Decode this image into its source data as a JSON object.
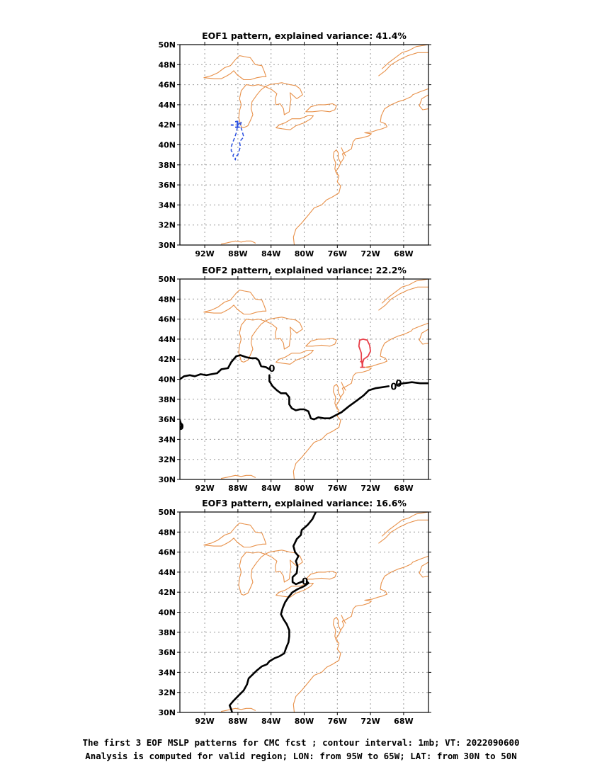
{
  "map": {
    "lon_range": [
      -95,
      -65
    ],
    "lat_range": [
      30,
      50
    ],
    "lon_ticks": [
      -92,
      -88,
      -84,
      -80,
      -76,
      -72,
      -68
    ],
    "lat_ticks": [
      30,
      32,
      34,
      36,
      38,
      40,
      42,
      44,
      46,
      48,
      50
    ],
    "lon_tick_labels": [
      "92W",
      "88W",
      "84W",
      "80W",
      "76W",
      "72W",
      "68W"
    ],
    "lat_tick_labels": [
      "30N",
      "32N",
      "34N",
      "36N",
      "38N",
      "40N",
      "42N",
      "44N",
      "46N",
      "48N",
      "50N"
    ],
    "colors": {
      "coastline": "#e8914a",
      "grid": "#9a9a9a",
      "zero_contour": "#000000",
      "negative_contour": "#2a4fe0",
      "positive_contour": "#e8404a"
    },
    "contour_interval": "1mb"
  },
  "panels": [
    {
      "title": "EOF1 pattern, explained variance: 41.4%",
      "contours": [
        {
          "kind": "negative",
          "label": "-1",
          "label_pos": [
            -88.3,
            42.05
          ],
          "points": [
            [
              -87.6,
              42.3
            ],
            [
              -87.7,
              41.9
            ],
            [
              -87.5,
              41.4
            ],
            [
              -87.3,
              40.8
            ],
            [
              -87.8,
              40.3
            ],
            [
              -87.7,
              39.8
            ],
            [
              -87.9,
              39.3
            ],
            [
              -88.0,
              39.0
            ],
            [
              -88.3,
              38.8
            ],
            [
              -88.3,
              38.5
            ],
            [
              -88.6,
              38.9
            ],
            [
              -88.5,
              39.1
            ],
            [
              -88.8,
              39.4
            ],
            [
              -88.8,
              39.8
            ],
            [
              -88.6,
              40.3
            ],
            [
              -88.4,
              40.7
            ],
            [
              -88.2,
              41.2
            ],
            [
              -88.1,
              41.6
            ],
            [
              -88.0,
              42.0
            ],
            [
              -87.6,
              42.3
            ]
          ]
        }
      ]
    },
    {
      "title": "EOF2 pattern, explained variance: 22.2%",
      "contours": [
        {
          "kind": "zero",
          "label": "0",
          "label_pos": [
            -83.9,
            41.1
          ],
          "points": [
            [
              -95,
              40.0
            ],
            [
              -94.5,
              40.3
            ],
            [
              -93.8,
              40.4
            ],
            [
              -93.2,
              40.3
            ],
            [
              -92.5,
              40.5
            ],
            [
              -91.8,
              40.4
            ],
            [
              -91.2,
              40.5
            ],
            [
              -90.5,
              40.6
            ],
            [
              -90.0,
              41.0
            ],
            [
              -89.2,
              41.1
            ],
            [
              -88.8,
              41.7
            ],
            [
              -88.2,
              42.3
            ],
            [
              -87.7,
              42.4
            ],
            [
              -87.0,
              42.2
            ],
            [
              -86.4,
              42.1
            ],
            [
              -85.8,
              42.1
            ],
            [
              -85.5,
              41.9
            ],
            [
              -85.2,
              41.3
            ],
            [
              -84.6,
              41.2
            ],
            [
              -84.2,
              41.0
            ]
          ]
        },
        {
          "kind": "zero",
          "label": "0",
          "label_pos": [
            -69.2,
            39.3
          ],
          "points": [
            [
              -84.2,
              40.4
            ],
            [
              -84.2,
              39.8
            ],
            [
              -83.8,
              39.3
            ],
            [
              -83.3,
              38.9
            ],
            [
              -82.8,
              38.6
            ],
            [
              -82.2,
              38.6
            ],
            [
              -81.8,
              38.2
            ],
            [
              -81.8,
              37.5
            ],
            [
              -81.5,
              37.1
            ],
            [
              -81.0,
              36.9
            ],
            [
              -80.5,
              37.0
            ],
            [
              -80.0,
              37.0
            ],
            [
              -79.5,
              36.8
            ],
            [
              -79.2,
              36.1
            ],
            [
              -78.8,
              36.0
            ],
            [
              -78.3,
              36.2
            ],
            [
              -77.6,
              36.1
            ],
            [
              -76.9,
              36.1
            ],
            [
              -76.2,
              36.4
            ],
            [
              -75.5,
              36.7
            ],
            [
              -74.6,
              37.3
            ],
            [
              -73.6,
              37.9
            ],
            [
              -72.8,
              38.4
            ],
            [
              -72.2,
              38.9
            ],
            [
              -71.4,
              39.1
            ],
            [
              -70.6,
              39.2
            ],
            [
              -69.8,
              39.3
            ]
          ]
        },
        {
          "kind": "zero",
          "label": "0",
          "label_pos": [
            -68.6,
            39.6
          ],
          "points": [
            [
              -68.6,
              39.5
            ],
            [
              -68.0,
              39.6
            ],
            [
              -67.0,
              39.7
            ],
            [
              -66.0,
              39.6
            ],
            [
              -65,
              39.6
            ]
          ]
        },
        {
          "kind": "zero",
          "label": "0",
          "label_pos": [
            -94.9,
            35.3
          ],
          "points": [
            [
              -95,
              35.9
            ],
            [
              -94.8,
              35.4
            ],
            [
              -95,
              35.0
            ]
          ]
        },
        {
          "kind": "positive",
          "label": "1",
          "label_pos": [
            -73.0,
            41.5
          ],
          "points": [
            [
              -73.0,
              41.5
            ],
            [
              -73.1,
              42.0
            ],
            [
              -73.1,
              42.6
            ],
            [
              -73.4,
              43.3
            ],
            [
              -73.3,
              43.9
            ],
            [
              -72.9,
              44.0
            ],
            [
              -72.4,
              43.9
            ],
            [
              -72.1,
              43.4
            ],
            [
              -72.0,
              42.8
            ],
            [
              -72.3,
              42.3
            ],
            [
              -72.8,
              42.0
            ],
            [
              -73.0,
              41.5
            ]
          ]
        }
      ]
    },
    {
      "title": "EOF3 pattern, explained variance: 16.6%",
      "contours": [
        {
          "kind": "zero",
          "label": "0",
          "label_pos": [
            -79.9,
            43.1
          ],
          "points": [
            [
              -78.6,
              50.0
            ],
            [
              -79.0,
              49.3
            ],
            [
              -79.6,
              48.7
            ],
            [
              -80.3,
              48.2
            ],
            [
              -80.4,
              47.7
            ],
            [
              -80.9,
              47.3
            ],
            [
              -81.3,
              46.6
            ],
            [
              -81.1,
              46.0
            ],
            [
              -80.7,
              45.6
            ],
            [
              -81.0,
              45.1
            ],
            [
              -80.8,
              44.6
            ],
            [
              -80.9,
              43.9
            ],
            [
              -81.4,
              43.5
            ],
            [
              -81.4,
              43.0
            ],
            [
              -81.0,
              42.8
            ],
            [
              -80.4,
              43.0
            ],
            [
              -80.1,
              43.1
            ]
          ]
        },
        {
          "kind": "zero",
          "label": "",
          "label_pos": [
            -79.5,
            42.9
          ],
          "points": [
            [
              -79.7,
              43.1
            ],
            [
              -79.5,
              42.9
            ],
            [
              -80.0,
              42.6
            ],
            [
              -80.8,
              42.3
            ],
            [
              -81.4,
              42.0
            ],
            [
              -81.9,
              41.5
            ],
            [
              -82.3,
              41.0
            ],
            [
              -82.6,
              40.4
            ],
            [
              -82.8,
              39.8
            ],
            [
              -82.5,
              39.3
            ],
            [
              -82.1,
              38.8
            ],
            [
              -81.8,
              38.2
            ],
            [
              -81.8,
              37.6
            ],
            [
              -81.9,
              37.0
            ],
            [
              -82.2,
              36.4
            ],
            [
              -82.4,
              35.9
            ],
            [
              -83.0,
              35.6
            ],
            [
              -83.6,
              35.4
            ],
            [
              -84.2,
              35.1
            ],
            [
              -84.5,
              34.8
            ],
            [
              -85.1,
              34.6
            ],
            [
              -85.7,
              34.2
            ],
            [
              -86.2,
              33.8
            ],
            [
              -86.7,
              33.4
            ],
            [
              -86.9,
              32.8
            ],
            [
              -87.3,
              32.2
            ],
            [
              -87.9,
              31.7
            ],
            [
              -88.6,
              31.1
            ],
            [
              -89.0,
              30.7
            ],
            [
              -88.8,
              30.3
            ],
            [
              -88.7,
              30.0
            ]
          ]
        }
      ]
    }
  ],
  "caption": {
    "line1": "The first 3 EOF MSLP patterns for CMC fcst ; contour interval: 1mb; VT: 2022090600",
    "line2": "Analysis is computed for valid region; LON: from 95W to 65W; LAT: from 30N to 50N"
  }
}
